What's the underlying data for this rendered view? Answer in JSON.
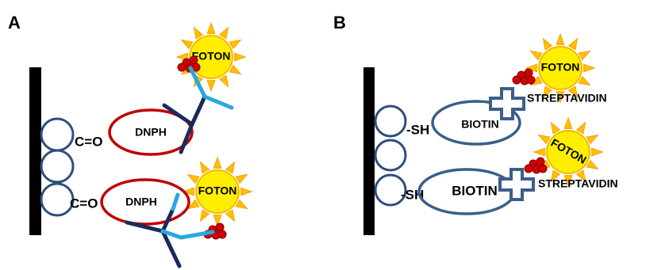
{
  "panels": [
    {
      "label": "A",
      "groups": [
        {
          "group": "C=O",
          "target": "DNPH",
          "reporter": "FOTON"
        },
        {
          "group": "C=O",
          "target": "DNPH",
          "reporter": "FOTON"
        }
      ]
    },
    {
      "label": "B",
      "groups": [
        {
          "group": "-SH",
          "target": "BIOTIN",
          "binder": "STREPTAVIDIN",
          "reporter": "FOTON"
        },
        {
          "group": "-SH",
          "target": "BIOTIN",
          "binder": "STREPTAVIDIN",
          "reporter": "FOTON"
        }
      ]
    }
  ]
}
